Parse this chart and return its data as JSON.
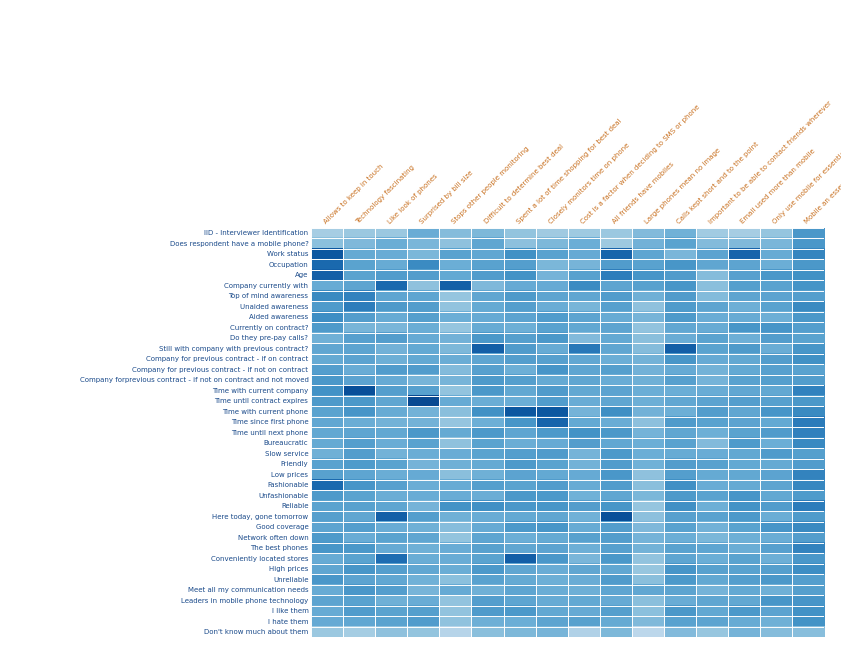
{
  "row_labels": [
    "IID - Interviewer Identification",
    "Does respondent have a mobile phone?",
    "Work status",
    "Occupation",
    "Age",
    "Company currently with",
    "Top of mind awareness",
    "Unaided awareness",
    "Aided awareness",
    "Currently on contract?",
    "Do they pre-pay calls?",
    "Still with company with previous contract?",
    "Company for previous contract - if on contract",
    "Company for previous contract - if not on contract",
    "Company forprevious contract - if not on contract and not moved",
    "Time with current company",
    "Time until contract expires",
    "Time with current phone",
    "Time since first phone",
    "Time until next phone",
    "Bureaucratic",
    "Slow service",
    "Friendly",
    "Low prices",
    "Fashionable",
    "Unfashionable",
    "Reliable",
    "Here today, gone tomorrow",
    "Good coverage",
    "Network often down",
    "The best phones",
    "Conveniently located stores",
    "High prices",
    "Unreliable",
    "Meet all my communication needs",
    "Leaders in mobile phone technology",
    "I like them",
    "I hate them",
    "Don't know much about them"
  ],
  "col_labels": [
    "Allows to keep in touch",
    "Technology fascinating",
    "Like look of phones",
    "Surprised by bill size",
    "Stops other people monitoring",
    "Difficult to determine best deal",
    "Spent a lot of time shopping for best deal",
    "Closely monitors time on phone",
    "Cost is a factor when deciding to SMS or phone",
    "All friends have mobiles",
    "Large phones mean no image",
    "Calls kept short and to the point",
    "Important to be able to contact friends wherever",
    "Email used more than mobile",
    "Only use mobile for essentials",
    "Mobile an essential"
  ],
  "colormap": "Blues",
  "vmin": 0,
  "vmax": 1,
  "row_label_color": "#1a4a8a",
  "col_label_color": "#c87020",
  "background_color": "#ffffff",
  "cell_data": [
    [
      0.38,
      0.42,
      0.42,
      0.48,
      0.38,
      0.45,
      0.4,
      0.42,
      0.4,
      0.38,
      0.42,
      0.45,
      0.38,
      0.4,
      0.42,
      0.55
    ],
    [
      0.45,
      0.48,
      0.45,
      0.52,
      0.4,
      0.48,
      0.45,
      0.45,
      0.45,
      0.42,
      0.48,
      0.52,
      0.42,
      0.45,
      0.5,
      0.6
    ],
    [
      0.82,
      0.52,
      0.52,
      0.42,
      0.52,
      0.55,
      0.62,
      0.58,
      0.52,
      0.78,
      0.52,
      0.48,
      0.55,
      0.78,
      0.52,
      0.62
    ],
    [
      0.78,
      0.52,
      0.52,
      0.48,
      0.48,
      0.55,
      0.58,
      0.52,
      0.52,
      0.55,
      0.55,
      0.58,
      0.48,
      0.52,
      0.55,
      0.62
    ],
    [
      0.82,
      0.58,
      0.52,
      0.52,
      0.48,
      0.58,
      0.58,
      0.52,
      0.58,
      0.68,
      0.58,
      0.58,
      0.48,
      0.58,
      0.62,
      0.65
    ],
    [
      0.55,
      0.55,
      0.78,
      0.38,
      0.8,
      0.45,
      0.52,
      0.48,
      0.62,
      0.52,
      0.52,
      0.55,
      0.48,
      0.52,
      0.58,
      0.62
    ],
    [
      0.62,
      0.68,
      0.58,
      0.52,
      0.45,
      0.55,
      0.55,
      0.55,
      0.52,
      0.55,
      0.45,
      0.55,
      0.5,
      0.55,
      0.55,
      0.62
    ],
    [
      0.58,
      0.68,
      0.55,
      0.52,
      0.45,
      0.55,
      0.55,
      0.55,
      0.5,
      0.55,
      0.45,
      0.55,
      0.5,
      0.55,
      0.55,
      0.62
    ],
    [
      0.58,
      0.6,
      0.55,
      0.52,
      0.45,
      0.55,
      0.55,
      0.55,
      0.5,
      0.55,
      0.45,
      0.55,
      0.5,
      0.55,
      0.55,
      0.62
    ],
    [
      0.55,
      0.52,
      0.52,
      0.52,
      0.45,
      0.55,
      0.55,
      0.55,
      0.5,
      0.55,
      0.45,
      0.55,
      0.5,
      0.55,
      0.55,
      0.6
    ],
    [
      0.55,
      0.52,
      0.52,
      0.52,
      0.45,
      0.55,
      0.55,
      0.55,
      0.5,
      0.55,
      0.45,
      0.55,
      0.5,
      0.55,
      0.55,
      0.6
    ],
    [
      0.55,
      0.55,
      0.52,
      0.52,
      0.45,
      0.8,
      0.55,
      0.55,
      0.72,
      0.55,
      0.45,
      0.8,
      0.5,
      0.55,
      0.55,
      0.62
    ],
    [
      0.55,
      0.55,
      0.52,
      0.52,
      0.45,
      0.55,
      0.55,
      0.55,
      0.5,
      0.55,
      0.45,
      0.55,
      0.5,
      0.55,
      0.55,
      0.6
    ],
    [
      0.55,
      0.55,
      0.52,
      0.52,
      0.45,
      0.55,
      0.55,
      0.55,
      0.5,
      0.55,
      0.45,
      0.55,
      0.5,
      0.55,
      0.55,
      0.6
    ],
    [
      0.55,
      0.55,
      0.52,
      0.52,
      0.45,
      0.55,
      0.55,
      0.55,
      0.5,
      0.55,
      0.45,
      0.55,
      0.5,
      0.55,
      0.55,
      0.6
    ],
    [
      0.58,
      0.85,
      0.52,
      0.52,
      0.45,
      0.58,
      0.55,
      0.55,
      0.52,
      0.55,
      0.45,
      0.55,
      0.5,
      0.55,
      0.58,
      0.65
    ],
    [
      0.58,
      0.55,
      0.52,
      0.88,
      0.45,
      0.55,
      0.55,
      0.55,
      0.52,
      0.55,
      0.45,
      0.55,
      0.5,
      0.55,
      0.58,
      0.65
    ],
    [
      0.58,
      0.55,
      0.52,
      0.52,
      0.45,
      0.58,
      0.82,
      0.82,
      0.52,
      0.58,
      0.48,
      0.55,
      0.52,
      0.55,
      0.58,
      0.65
    ],
    [
      0.58,
      0.55,
      0.52,
      0.52,
      0.45,
      0.55,
      0.55,
      0.78,
      0.52,
      0.55,
      0.45,
      0.55,
      0.5,
      0.55,
      0.58,
      0.65
    ],
    [
      0.58,
      0.55,
      0.52,
      0.55,
      0.48,
      0.58,
      0.55,
      0.55,
      0.58,
      0.55,
      0.45,
      0.58,
      0.52,
      0.55,
      0.58,
      0.65
    ],
    [
      0.55,
      0.55,
      0.52,
      0.52,
      0.45,
      0.55,
      0.55,
      0.55,
      0.52,
      0.55,
      0.45,
      0.55,
      0.5,
      0.55,
      0.55,
      0.62
    ],
    [
      0.55,
      0.55,
      0.52,
      0.52,
      0.45,
      0.55,
      0.55,
      0.55,
      0.52,
      0.55,
      0.45,
      0.55,
      0.5,
      0.55,
      0.55,
      0.62
    ],
    [
      0.55,
      0.55,
      0.52,
      0.52,
      0.45,
      0.55,
      0.55,
      0.55,
      0.52,
      0.55,
      0.45,
      0.55,
      0.5,
      0.55,
      0.55,
      0.62
    ],
    [
      0.55,
      0.55,
      0.52,
      0.52,
      0.45,
      0.55,
      0.55,
      0.55,
      0.52,
      0.55,
      0.45,
      0.55,
      0.5,
      0.55,
      0.55,
      0.62
    ],
    [
      0.75,
      0.58,
      0.52,
      0.52,
      0.45,
      0.55,
      0.55,
      0.55,
      0.52,
      0.55,
      0.45,
      0.58,
      0.5,
      0.55,
      0.55,
      0.62
    ],
    [
      0.55,
      0.55,
      0.52,
      0.52,
      0.45,
      0.55,
      0.55,
      0.55,
      0.52,
      0.55,
      0.45,
      0.55,
      0.5,
      0.55,
      0.55,
      0.62
    ],
    [
      0.55,
      0.55,
      0.52,
      0.52,
      0.48,
      0.58,
      0.55,
      0.55,
      0.52,
      0.55,
      0.45,
      0.58,
      0.52,
      0.58,
      0.58,
      0.65
    ],
    [
      0.55,
      0.55,
      0.82,
      0.52,
      0.45,
      0.55,
      0.55,
      0.55,
      0.52,
      0.85,
      0.45,
      0.55,
      0.5,
      0.55,
      0.55,
      0.62
    ],
    [
      0.55,
      0.55,
      0.52,
      0.52,
      0.45,
      0.55,
      0.55,
      0.58,
      0.52,
      0.55,
      0.45,
      0.55,
      0.5,
      0.55,
      0.55,
      0.62
    ],
    [
      0.55,
      0.55,
      0.55,
      0.55,
      0.45,
      0.55,
      0.55,
      0.55,
      0.52,
      0.55,
      0.45,
      0.55,
      0.5,
      0.55,
      0.55,
      0.62
    ],
    [
      0.55,
      0.55,
      0.55,
      0.52,
      0.45,
      0.55,
      0.55,
      0.55,
      0.52,
      0.55,
      0.45,
      0.55,
      0.5,
      0.55,
      0.55,
      0.62
    ],
    [
      0.55,
      0.55,
      0.75,
      0.52,
      0.45,
      0.55,
      0.82,
      0.55,
      0.52,
      0.55,
      0.45,
      0.55,
      0.5,
      0.55,
      0.55,
      0.62
    ],
    [
      0.55,
      0.55,
      0.52,
      0.52,
      0.45,
      0.55,
      0.55,
      0.55,
      0.52,
      0.55,
      0.45,
      0.55,
      0.5,
      0.55,
      0.55,
      0.62
    ],
    [
      0.55,
      0.55,
      0.52,
      0.52,
      0.45,
      0.55,
      0.55,
      0.55,
      0.52,
      0.55,
      0.45,
      0.55,
      0.5,
      0.55,
      0.55,
      0.62
    ],
    [
      0.55,
      0.55,
      0.52,
      0.52,
      0.48,
      0.55,
      0.58,
      0.55,
      0.52,
      0.55,
      0.48,
      0.55,
      0.52,
      0.55,
      0.55,
      0.62
    ],
    [
      0.55,
      0.55,
      0.52,
      0.52,
      0.45,
      0.55,
      0.55,
      0.55,
      0.52,
      0.55,
      0.45,
      0.55,
      0.5,
      0.55,
      0.55,
      0.62
    ],
    [
      0.55,
      0.55,
      0.52,
      0.52,
      0.45,
      0.55,
      0.55,
      0.55,
      0.52,
      0.55,
      0.45,
      0.55,
      0.5,
      0.55,
      0.55,
      0.62
    ],
    [
      0.55,
      0.55,
      0.52,
      0.52,
      0.45,
      0.55,
      0.55,
      0.55,
      0.52,
      0.55,
      0.45,
      0.55,
      0.5,
      0.55,
      0.55,
      0.62
    ],
    [
      0.42,
      0.38,
      0.38,
      0.38,
      0.32,
      0.42,
      0.42,
      0.42,
      0.38,
      0.42,
      0.32,
      0.42,
      0.38,
      0.42,
      0.42,
      0.48
    ]
  ]
}
